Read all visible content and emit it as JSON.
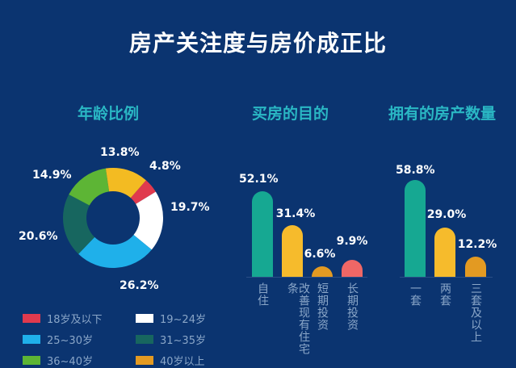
{
  "title": "房产关注度与房价成正比",
  "sections": {
    "age": "年龄比例",
    "purpose": "买房的目的",
    "count": "拥有的房产数量"
  },
  "chart_data": [
    {
      "type": "pie",
      "title": "年龄比例",
      "donut": true,
      "categories": [
        "18岁及以下",
        "19-24岁",
        "25-30岁",
        "31-35岁",
        "36-40岁",
        "40岁以上"
      ],
      "values": [
        4.8,
        19.7,
        26.2,
        20.6,
        14.9,
        13.8
      ],
      "labels": [
        "4.8%",
        "19.7%",
        "26.2%",
        "20.6%",
        "14.9%",
        "13.8%"
      ],
      "colors": [
        "#e03a4e",
        "#ffffff",
        "#1fb0ea",
        "#17665f",
        "#5db535",
        "#f3bb22"
      ]
    },
    {
      "type": "bar",
      "title": "买房的目的",
      "categories": [
        "自住",
        "改善现有住宅条件",
        "短期投资",
        "长期投资"
      ],
      "values": [
        52.1,
        31.4,
        6.6,
        9.9
      ],
      "labels": [
        "52.1%",
        "31.4%",
        "6.6%",
        "9.9%"
      ],
      "colors": [
        "#16a892",
        "#f6bb2c",
        "#e39a22",
        "#ef6766"
      ]
    },
    {
      "type": "bar",
      "title": "拥有的房产数量",
      "categories": [
        "一套",
        "两套",
        "三套及以上"
      ],
      "values": [
        58.8,
        29.0,
        12.2
      ],
      "labels": [
        "58.8%",
        "29.0%",
        "12.2%"
      ],
      "colors": [
        "#16a892",
        "#f6bb2c",
        "#e39a22"
      ]
    }
  ],
  "legend": [
    {
      "label": "18岁及以下",
      "color": "#e03a4e"
    },
    {
      "label": "19~24岁",
      "color": "#ffffff"
    },
    {
      "label": "25~30岁",
      "color": "#1fb0ea"
    },
    {
      "label": "31~35岁",
      "color": "#17665f"
    },
    {
      "label": "36~40岁",
      "color": "#5db535"
    },
    {
      "label": "40岁以上",
      "color": "#e39a22"
    }
  ],
  "purpose_bars": [
    {
      "label": "自住",
      "value": "52.1%"
    },
    {
      "label": "改善现有住宅条",
      "value": "31.4%"
    },
    {
      "label": "短期投资",
      "value": "6.6%"
    },
    {
      "label": "长期投资",
      "value": "9.9%"
    }
  ],
  "count_bars": [
    {
      "label": "一套",
      "value": "58.8%"
    },
    {
      "label": "两套",
      "value": "29.0%"
    },
    {
      "label": "三套及以上",
      "value": "12.2%"
    }
  ],
  "donut_labels": [
    "13.8%",
    "4.8%",
    "14.9%",
    "19.7%",
    "20.6%",
    "26.2%"
  ]
}
